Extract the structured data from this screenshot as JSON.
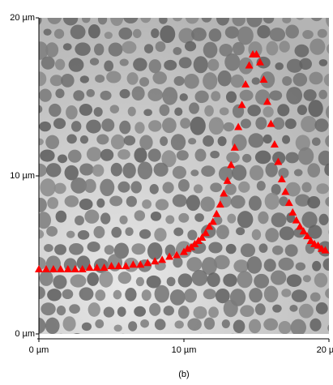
{
  "chart_data": {
    "type": "scatter",
    "caption": "(b)",
    "xlim": [
      0,
      20
    ],
    "ylim": [
      0,
      20
    ],
    "xticks": [
      {
        "value": 0,
        "label": "0 µm"
      },
      {
        "value": 10,
        "label": "10 µm"
      },
      {
        "value": 20,
        "label": "20 µm"
      }
    ],
    "yticks": [
      {
        "value": 0,
        "label": "0 µm"
      },
      {
        "value": 10,
        "label": "10 µm"
      },
      {
        "value": 20,
        "label": "20 µm"
      }
    ],
    "series": [
      {
        "color": "#ff0000",
        "x": [
          0,
          0.5,
          1,
          1.5,
          2,
          2.5,
          3,
          3.5,
          4,
          4.5,
          5,
          5.5,
          6,
          6.5,
          7,
          7.5,
          8,
          8.5,
          9,
          9.5,
          10,
          10.25,
          10.5,
          10.75,
          11,
          11.25,
          11.5,
          11.75,
          12,
          12.25,
          12.5,
          12.75,
          13,
          13.25,
          13.5,
          13.75,
          14,
          14.25,
          14.5,
          14.75,
          15,
          15.25,
          15.5,
          15.75,
          16,
          16.25,
          16.5,
          16.75,
          17,
          17.25,
          17.5,
          17.75,
          18,
          18.25,
          18.5,
          18.75,
          19,
          19.25,
          19.5,
          19.75
        ],
        "values": [
          4.1,
          4.1,
          4.1,
          4.1,
          4.1,
          4.1,
          4.1,
          4.2,
          4.2,
          4.2,
          4.3,
          4.3,
          4.3,
          4.4,
          4.4,
          4.5,
          4.6,
          4.7,
          4.9,
          5.0,
          5.2,
          5.4,
          5.5,
          5.7,
          5.9,
          6.1,
          6.4,
          6.8,
          7.1,
          7.6,
          8.2,
          8.9,
          9.7,
          10.7,
          11.8,
          13.1,
          14.5,
          15.8,
          17.0,
          17.7,
          17.7,
          17.2,
          16.1,
          14.7,
          13.3,
          12.0,
          10.9,
          9.8,
          9.0,
          8.3,
          7.7,
          7.2,
          6.8,
          6.5,
          6.2,
          5.9,
          5.7,
          5.6,
          5.4,
          5.3
        ]
      }
    ]
  }
}
